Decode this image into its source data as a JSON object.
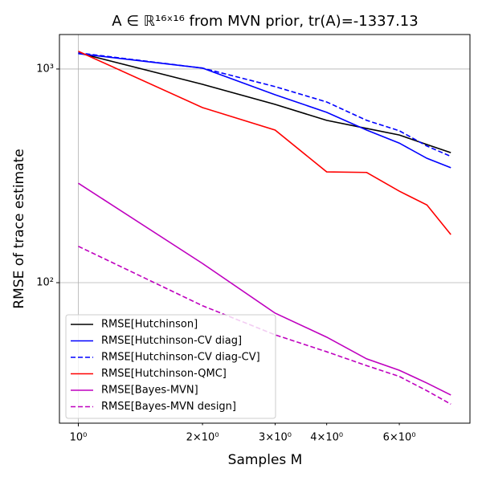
{
  "chart_data": {
    "type": "line",
    "title": "A ∈ ℝ¹⁶ˣ¹⁶ from MVN prior, tr(A)=-1337.13",
    "xlabel": "Samples M",
    "ylabel": "RMSE of trace estimate",
    "xscale": "log",
    "yscale": "log",
    "grid": true,
    "legend": "lower left",
    "xlim": [
      0.9,
      8.9
    ],
    "ylim": [
      22,
      1450
    ],
    "xticks": [
      {
        "value": 1,
        "label": "10⁰"
      }
    ],
    "xminorticks": [
      {
        "value": 2,
        "label": "2×10⁰"
      },
      {
        "value": 3,
        "label": "3×10⁰"
      },
      {
        "value": 4,
        "label": "4×10⁰"
      },
      {
        "value": 6,
        "label": "6×10⁰"
      }
    ],
    "yticks": [
      {
        "value": 100,
        "label": "10²"
      },
      {
        "value": 1000,
        "label": "10³"
      }
    ],
    "x": [
      1,
      2,
      3,
      4,
      5,
      6,
      7,
      8
    ],
    "series": [
      {
        "name": "RMSE[Hutchinson]",
        "color": "#000000",
        "linestyle": "solid",
        "values": [
          1190,
          848,
          683,
          575,
          527,
          491,
          443,
          406
        ]
      },
      {
        "name": "RMSE[Hutchinson-CV diag]",
        "color": "#0000ff",
        "linestyle": "solid",
        "values": [
          1180,
          1010,
          758,
          627,
          518,
          450,
          382,
          345
        ]
      },
      {
        "name": "RMSE[Hutchinson-CV diag-CV]",
        "color": "#0000ff",
        "linestyle": "dashed",
        "values": [
          1190,
          1010,
          827,
          701,
          575,
          514,
          436,
          390
        ]
      },
      {
        "name": "RMSE[Hutchinson-QMC]",
        "color": "#ff0000",
        "linestyle": "solid",
        "values": [
          1210,
          660,
          518,
          330,
          328,
          268,
          231,
          168
        ]
      },
      {
        "name": "RMSE[Bayes-MVN]",
        "color": "#bf00bf",
        "linestyle": "solid",
        "values": [
          292,
          123,
          72,
          55.6,
          44,
          38.9,
          33.9,
          29.8
        ]
      },
      {
        "name": "RMSE[Bayes-MVN design]",
        "color": "#bf00bf",
        "linestyle": "dashed",
        "values": [
          148,
          78,
          57,
          47.5,
          40.9,
          36.4,
          31.2,
          27
        ]
      }
    ]
  }
}
